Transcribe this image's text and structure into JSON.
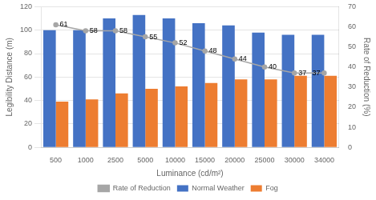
{
  "chart_data": {
    "type": "bar",
    "x_label": "Luminance (cd/m²)",
    "y_label": "Legibility Distance (m)",
    "y2_label": "Rate of Reduction (%)",
    "categories": [
      "500",
      "1000",
      "2500",
      "5000",
      "10000",
      "15000",
      "20000",
      "25000",
      "30000",
      "34000"
    ],
    "series": [
      {
        "name": "Normal Weather",
        "color": "#4472C4",
        "values": [
          100,
          100,
          110,
          113,
          110,
          106,
          104,
          98,
          96,
          96
        ]
      },
      {
        "name": "Fog",
        "color": "#ED7D31",
        "values": [
          39,
          41,
          46,
          50,
          52,
          55,
          58,
          58,
          61,
          61
        ]
      },
      {
        "name": "Rate of Reduction",
        "type": "line",
        "axis": "y2",
        "color": "#A6A6A6",
        "marker": "circle",
        "data_labels": true,
        "values": [
          61,
          58,
          58,
          55,
          52,
          48,
          44,
          40,
          37,
          37
        ]
      }
    ],
    "ylim": [
      0,
      120
    ],
    "yticks": [
      0,
      20,
      40,
      60,
      80,
      100,
      120
    ],
    "y2lim": [
      0,
      70
    ],
    "y2ticks": [
      0,
      10,
      20,
      30,
      40,
      50,
      60,
      70
    ],
    "grid": true,
    "legend": "bottom"
  }
}
